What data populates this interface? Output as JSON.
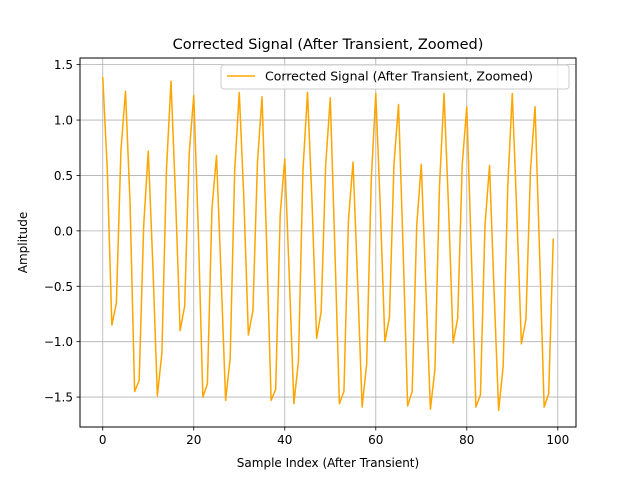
{
  "chart_data": {
    "type": "line",
    "title": "Corrected Signal (After Transient, Zoomed)",
    "xlabel": "Sample Index (After Transient)",
    "ylabel": "Amplitude",
    "xlim": [
      -5,
      104
    ],
    "ylim": [
      -1.77,
      1.56
    ],
    "xticks": [
      0,
      20,
      40,
      60,
      80,
      100
    ],
    "yticks": [
      -1.5,
      -1.0,
      -0.5,
      0.0,
      0.5,
      1.0,
      1.5
    ],
    "xtick_labels": [
      "0",
      "20",
      "40",
      "60",
      "80",
      "100"
    ],
    "ytick_labels": [
      "−1.5",
      "−1.0",
      "−0.5",
      "0.0",
      "0.5",
      "1.0",
      "1.5"
    ],
    "grid": true,
    "legend_position": "top-right",
    "series": [
      {
        "name": "Corrected Signal (After Transient, Zoomed)",
        "color": "#ffa500",
        "x": [
          0,
          1,
          2,
          3,
          4,
          5,
          6,
          7,
          8,
          9,
          10,
          11,
          12,
          13,
          14,
          15,
          16,
          17,
          18,
          19,
          20,
          21,
          22,
          23,
          24,
          25,
          26,
          27,
          28,
          29,
          30,
          31,
          32,
          33,
          34,
          35,
          36,
          37,
          38,
          39,
          40,
          41,
          42,
          43,
          44,
          45,
          46,
          47,
          48,
          49,
          50,
          51,
          52,
          53,
          54,
          55,
          56,
          57,
          58,
          59,
          60,
          61,
          62,
          63,
          64,
          65,
          66,
          67,
          68,
          69,
          70,
          71,
          72,
          73,
          74,
          75,
          76,
          77,
          78,
          79,
          80,
          81,
          82,
          83,
          84,
          85,
          86,
          87,
          88,
          89,
          90,
          91,
          92,
          93,
          94,
          95,
          96,
          97,
          98,
          99
        ],
        "y": [
          1.39,
          0.55,
          -0.85,
          -0.65,
          0.73,
          1.26,
          0.25,
          -1.45,
          -1.35,
          0.05,
          0.72,
          -0.3,
          -1.49,
          -1.1,
          0.55,
          1.35,
          0.3,
          -0.9,
          -0.68,
          0.7,
          1.22,
          0.0,
          -1.5,
          -1.38,
          0.2,
          0.68,
          -0.4,
          -1.53,
          -1.15,
          0.55,
          1.25,
          0.3,
          -0.94,
          -0.72,
          0.62,
          1.21,
          -0.1,
          -1.53,
          -1.43,
          0.15,
          0.65,
          -0.42,
          -1.56,
          -1.18,
          0.55,
          1.25,
          0.25,
          -0.97,
          -0.73,
          0.6,
          1.2,
          -0.15,
          -1.56,
          -1.45,
          0.1,
          0.62,
          -0.45,
          -1.59,
          -1.2,
          0.45,
          1.24,
          0.2,
          -1.0,
          -0.78,
          0.6,
          1.14,
          -0.15,
          -1.58,
          -1.45,
          0.05,
          0.6,
          -0.5,
          -1.61,
          -1.25,
          0.4,
          1.24,
          0.2,
          -1.01,
          -0.79,
          0.6,
          1.12,
          -0.2,
          -1.59,
          -1.48,
          0.05,
          0.59,
          -0.55,
          -1.62,
          -1.22,
          0.4,
          1.24,
          0.15,
          -1.02,
          -0.8,
          0.55,
          1.12,
          -0.2,
          -1.59,
          -1.47,
          -0.07
        ]
      }
    ]
  }
}
